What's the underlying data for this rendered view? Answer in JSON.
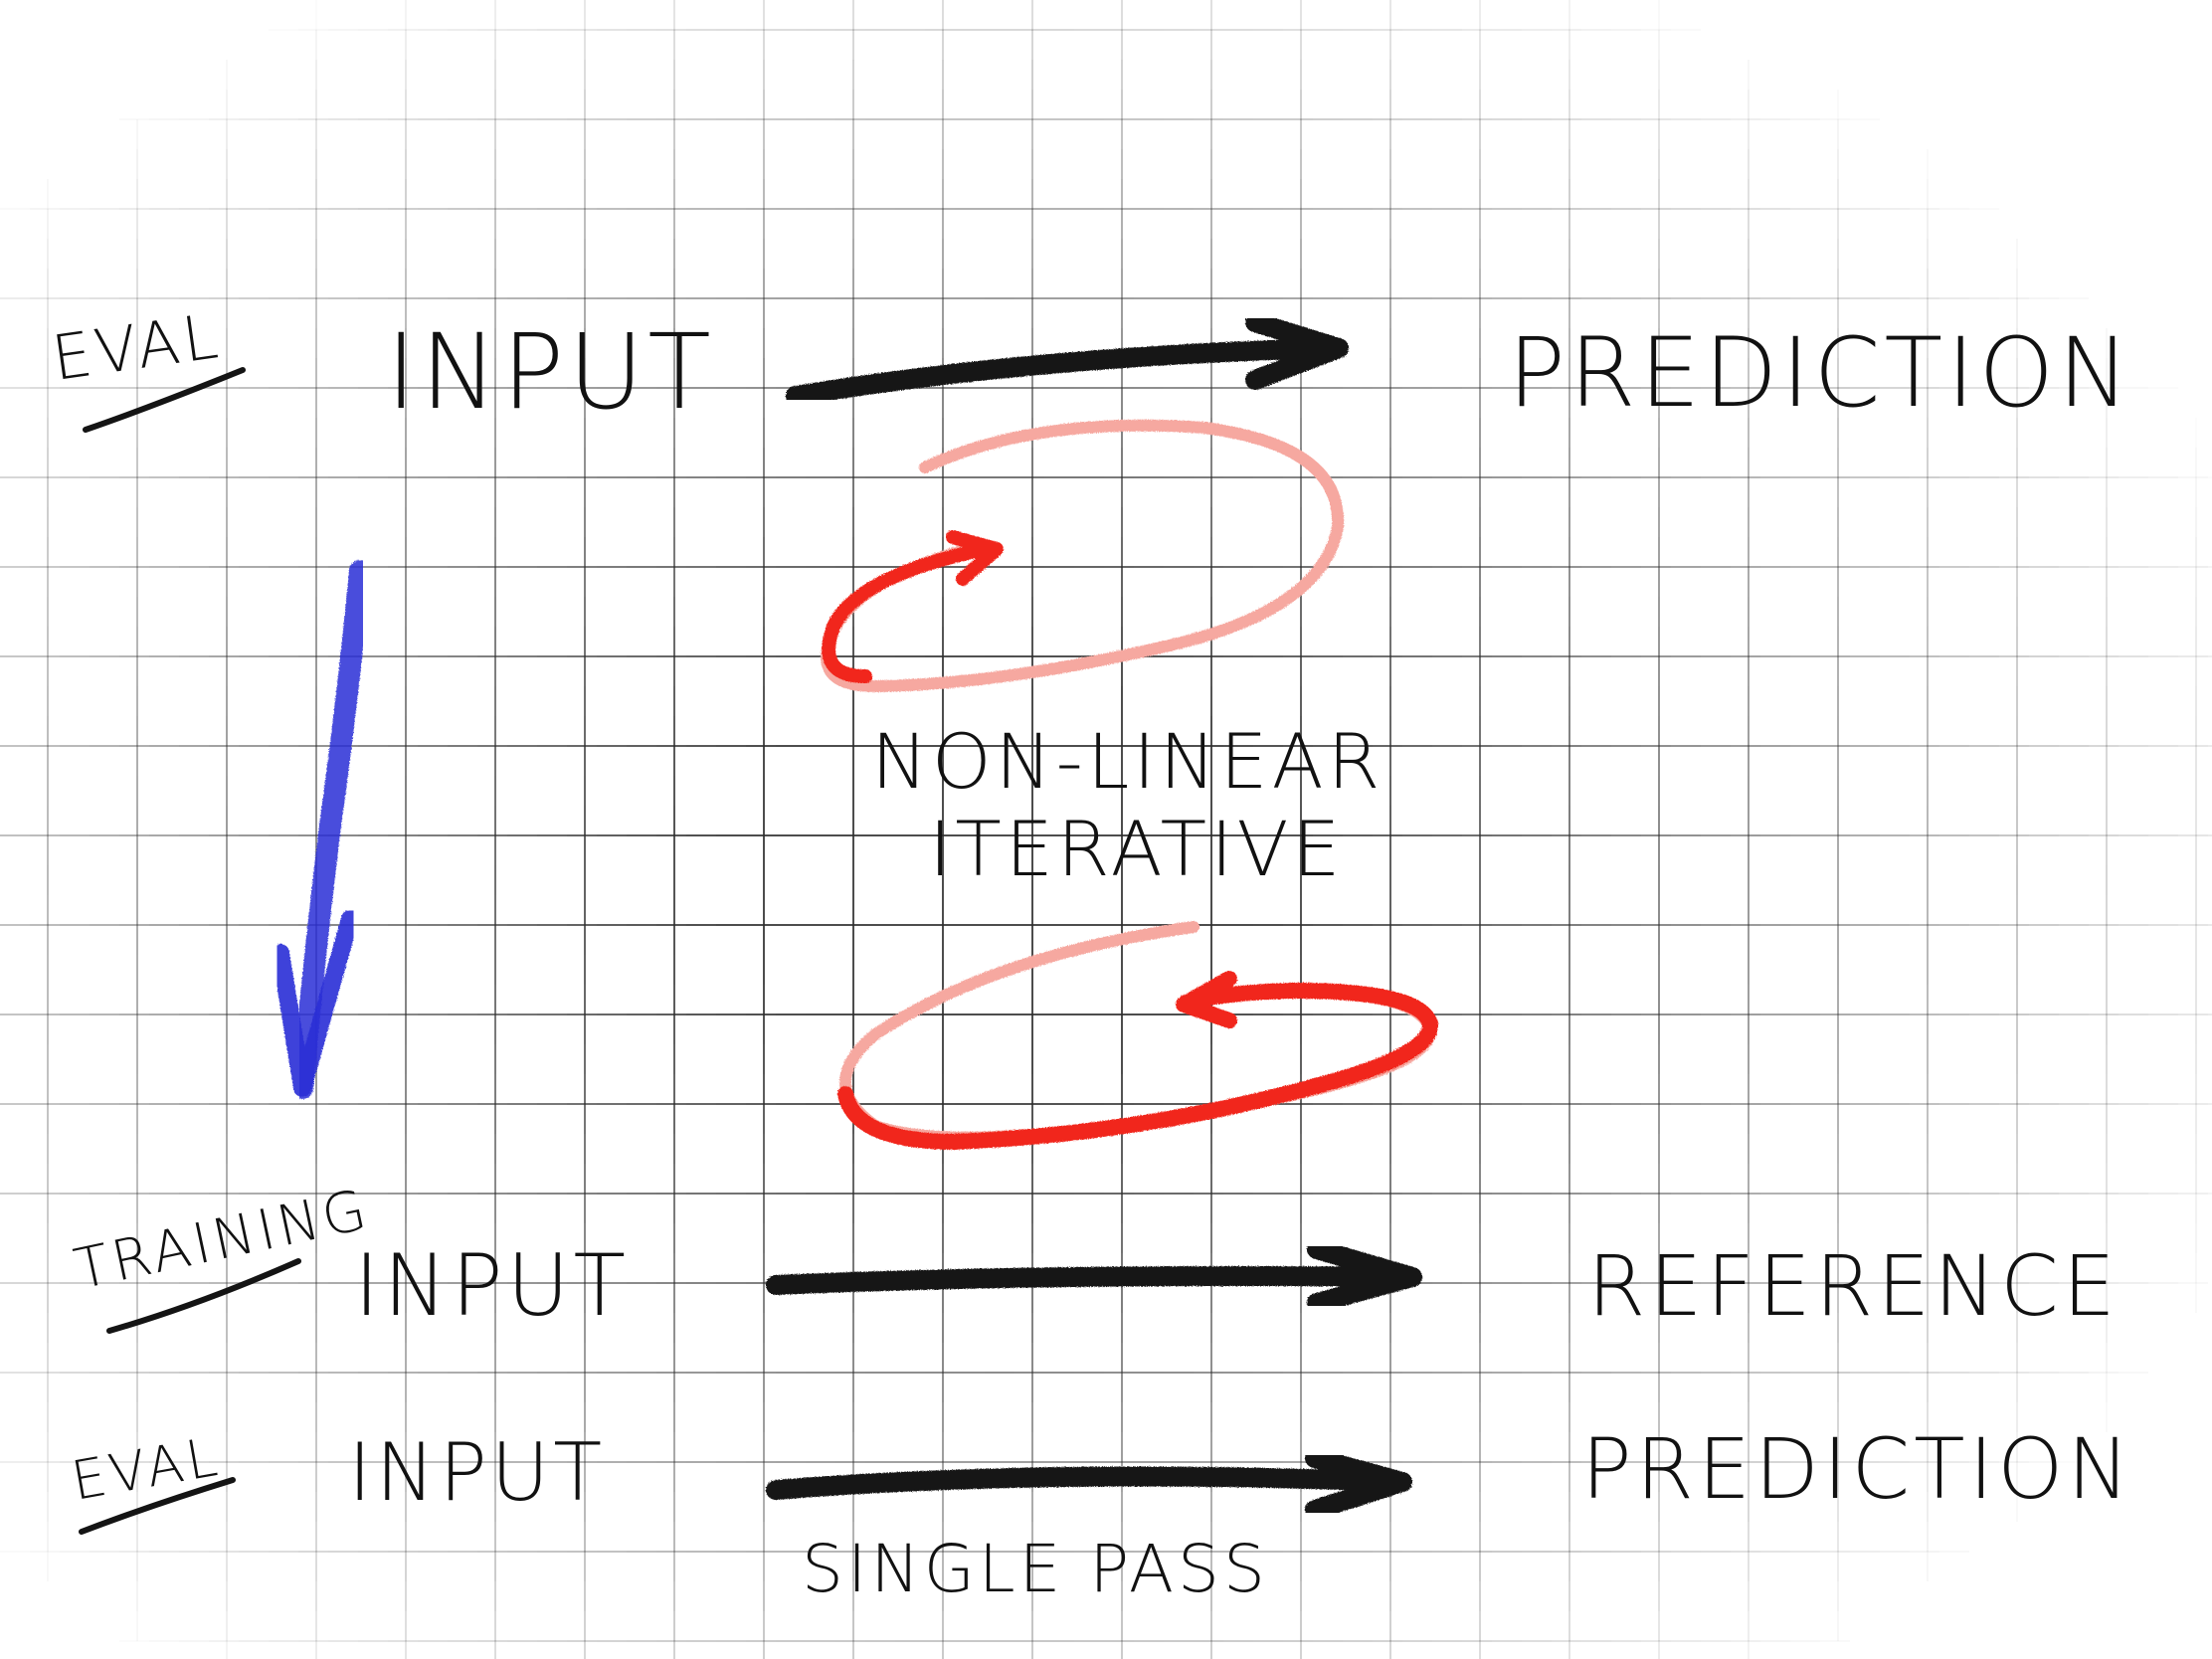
{
  "colors": {
    "ink": "#111111",
    "arrow": "#141414",
    "red_loop": "#f1281c",
    "red_faded": "#f6a8a0",
    "blue_arrow": "#2a2fd6",
    "grid_dark": "#3a3a3a",
    "grid_light": "#c8c8c8",
    "background": "#ffffff"
  },
  "top_row": {
    "mode_label": "EVAL",
    "input_label": "INPUT",
    "output_label": "PREDICTION"
  },
  "middle": {
    "annotation_line1": "NON-LINEAR",
    "annotation_line2": "ITERATIVE"
  },
  "training_row": {
    "mode_label": "TRAINING",
    "input_label": "INPUT",
    "output_label": "REFERENCE"
  },
  "bottom_row": {
    "mode_label": "EVAL",
    "input_label": "INPUT",
    "output_label": "PREDICTION",
    "caption": "SINGLE PASS"
  },
  "icons": {
    "down_arrow": "blue-down-arrow-icon",
    "loop_top": "red-loop-arrow-icon",
    "loop_bottom": "red-loop-arrow-icon"
  }
}
